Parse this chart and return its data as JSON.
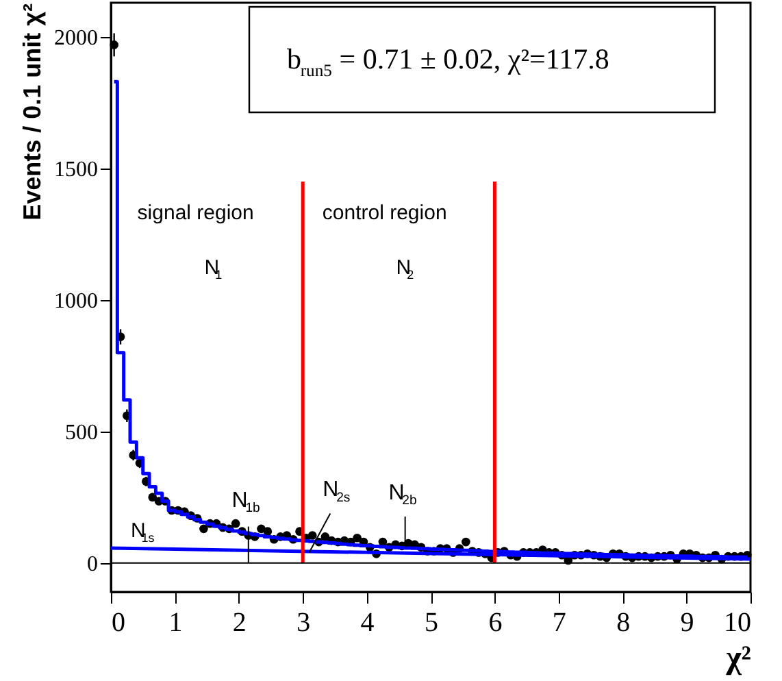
{
  "chart_data": {
    "type": "scatter",
    "xlabel": "χ²",
    "ylabel": "Events / 0.1 unit χ²",
    "xlim": [
      0,
      10
    ],
    "ylim": [
      -110,
      2130
    ],
    "xticks": [
      0,
      1,
      2,
      3,
      4,
      5,
      6,
      7,
      8,
      9,
      10
    ],
    "yticks": [
      0,
      500,
      1000,
      1500,
      2000
    ],
    "grid": false,
    "series": [
      {
        "marker": "circle",
        "color": "#000000",
        "x": [
          0.05,
          0.15,
          0.25,
          0.35,
          0.45,
          0.55,
          0.65,
          0.75,
          0.85,
          0.95,
          1.05,
          1.15,
          1.25,
          1.35,
          1.45,
          1.55,
          1.65,
          1.75,
          1.85,
          1.95,
          2.05,
          2.15,
          2.25,
          2.35,
          2.45,
          2.55,
          2.65,
          2.75,
          2.85,
          2.95,
          3.05,
          3.15,
          3.25,
          3.35,
          3.45,
          3.55,
          3.65,
          3.75,
          3.85,
          3.95,
          4.05,
          4.15,
          4.25,
          4.35,
          4.45,
          4.55,
          4.65,
          4.75,
          4.85,
          4.95,
          5.05,
          5.15,
          5.25,
          5.35,
          5.45,
          5.55,
          5.65,
          5.75,
          5.85,
          5.95,
          6.05,
          6.15,
          6.25,
          6.35,
          6.45,
          6.55,
          6.65,
          6.75,
          6.85,
          6.95,
          7.05,
          7.15,
          7.25,
          7.35,
          7.45,
          7.55,
          7.65,
          7.75,
          7.85,
          7.95,
          8.05,
          8.15,
          8.25,
          8.35,
          8.45,
          8.55,
          8.65,
          8.75,
          8.85,
          8.95,
          9.05,
          9.15,
          9.25,
          9.35,
          9.45,
          9.55,
          9.65,
          9.75,
          9.85,
          9.95
        ],
        "values": [
          1970,
          860,
          560,
          410,
          380,
          310,
          250,
          235,
          235,
          200,
          200,
          195,
          180,
          170,
          130,
          150,
          150,
          135,
          130,
          150,
          120,
          105,
          100,
          130,
          120,
          90,
          100,
          105,
          90,
          120,
          95,
          105,
          80,
          100,
          85,
          80,
          85,
          80,
          95,
          80,
          60,
          35,
          80,
          60,
          70,
          65,
          75,
          70,
          60,
          45,
          45,
          55,
          55,
          40,
          55,
          80,
          45,
          40,
          35,
          20,
          40,
          45,
          30,
          25,
          40,
          40,
          40,
          50,
          40,
          40,
          30,
          10,
          30,
          30,
          35,
          30,
          25,
          20,
          35,
          35,
          25,
          20,
          25,
          25,
          20,
          25,
          25,
          30,
          15,
          35,
          35,
          30,
          20,
          20,
          30,
          15,
          25,
          25,
          25,
          30
        ],
        "errors": [
          44,
          29,
          24,
          20,
          19,
          18,
          16,
          15,
          15,
          14,
          14,
          14,
          13,
          13,
          11,
          12,
          12,
          12,
          11,
          12,
          11,
          10,
          10,
          11,
          11,
          9,
          10,
          10,
          9,
          11,
          10,
          10,
          9,
          10,
          9,
          9,
          9,
          9,
          10,
          9,
          8,
          6,
          9,
          8,
          8,
          8,
          9,
          8,
          8,
          7,
          7,
          7,
          7,
          6,
          7,
          9,
          7,
          6,
          6,
          4,
          6,
          7,
          5,
          5,
          6,
          6,
          6,
          7,
          6,
          6,
          5,
          3,
          5,
          5,
          6,
          5,
          5,
          4,
          6,
          6,
          5,
          4,
          5,
          5,
          4,
          5,
          5,
          5,
          4,
          6,
          6,
          5,
          4,
          4,
          5,
          4,
          5,
          5,
          5,
          5
        ]
      },
      {
        "type": "step",
        "color": "#0000ff",
        "x": [
          0.05,
          0.15,
          0.25,
          0.35,
          0.45,
          0.55,
          0.65,
          0.75,
          0.85,
          0.95,
          1.05,
          1.15,
          1.25,
          1.35,
          1.45,
          1.55,
          1.65,
          1.75,
          1.85,
          1.95,
          2.05,
          2.15,
          2.25,
          2.35,
          2.45,
          2.55,
          2.65,
          2.75,
          2.85,
          2.95,
          3.05,
          3.15,
          3.25,
          3.35,
          3.45,
          3.55,
          3.65,
          3.75,
          3.85,
          3.95,
          4.05,
          4.15,
          4.25,
          4.35,
          4.45,
          4.55,
          4.65,
          4.75,
          4.85,
          4.95,
          5.05,
          5.15,
          5.25,
          5.35,
          5.45,
          5.55,
          5.65,
          5.75,
          5.85,
          5.95,
          6.05,
          6.15,
          6.25,
          6.35,
          6.45,
          6.55,
          6.65,
          6.75,
          6.85,
          6.95,
          7.05,
          7.15,
          7.25,
          7.35,
          7.45,
          7.55,
          7.65,
          7.75,
          7.85,
          7.95,
          8.05,
          8.15,
          8.25,
          8.35,
          8.45,
          8.55,
          8.65,
          8.75,
          8.85,
          8.95,
          9.05,
          9.15,
          9.25,
          9.35,
          9.45,
          9.55,
          9.65,
          9.75,
          9.85,
          9.95
        ],
        "values": [
          1830,
          800,
          620,
          460,
          400,
          340,
          290,
          265,
          235,
          200,
          195,
          185,
          175,
          165,
          155,
          148,
          140,
          134,
          128,
          122,
          117,
          112,
          108,
          104,
          100,
          97,
          94,
          91,
          88,
          86,
          84,
          82,
          80,
          78,
          76,
          74,
          72,
          70,
          68,
          66,
          65,
          63,
          62,
          60,
          59,
          58,
          57,
          56,
          55,
          54,
          53,
          52,
          51,
          50,
          49,
          48,
          47,
          46,
          45,
          44,
          44,
          43,
          42,
          41,
          41,
          40,
          39,
          38,
          38,
          37,
          36,
          36,
          35,
          34,
          34,
          33,
          33,
          32,
          32,
          31,
          31,
          30,
          30,
          29,
          29,
          28,
          28,
          27,
          27,
          26,
          26,
          25,
          25,
          25,
          24,
          24,
          23,
          23,
          23,
          22
        ]
      },
      {
        "type": "line",
        "color": "#0000ff",
        "x": [
          0,
          10
        ],
        "values": [
          57,
          15
        ]
      },
      {
        "type": "line",
        "color": "#ff0000",
        "x": [
          3,
          3
        ],
        "values": [
          0,
          1450
        ]
      },
      {
        "type": "line",
        "color": "#ff0000",
        "x": [
          6,
          6
        ],
        "values": [
          0,
          1450
        ]
      }
    ],
    "ref_lines": [
      {
        "axis": "y",
        "value": 0,
        "color": "#000000"
      }
    ],
    "annotations": [
      "b$_{run5}$ = 0.71 ± 0.02,  χ²=117.8",
      "signal region",
      "N$_{1}$",
      "control region",
      "N$_{2}$",
      "N$_{1s}$",
      {
        "text": "N$_{1b}$",
        "x": 2.15,
        "y": 0
      },
      {
        "text": "N$_{2s}$",
        "x": 3.1,
        "y": 40
      },
      {
        "text": "N$_{2b}$",
        "x": 4.6,
        "y": 60
      }
    ]
  }
}
